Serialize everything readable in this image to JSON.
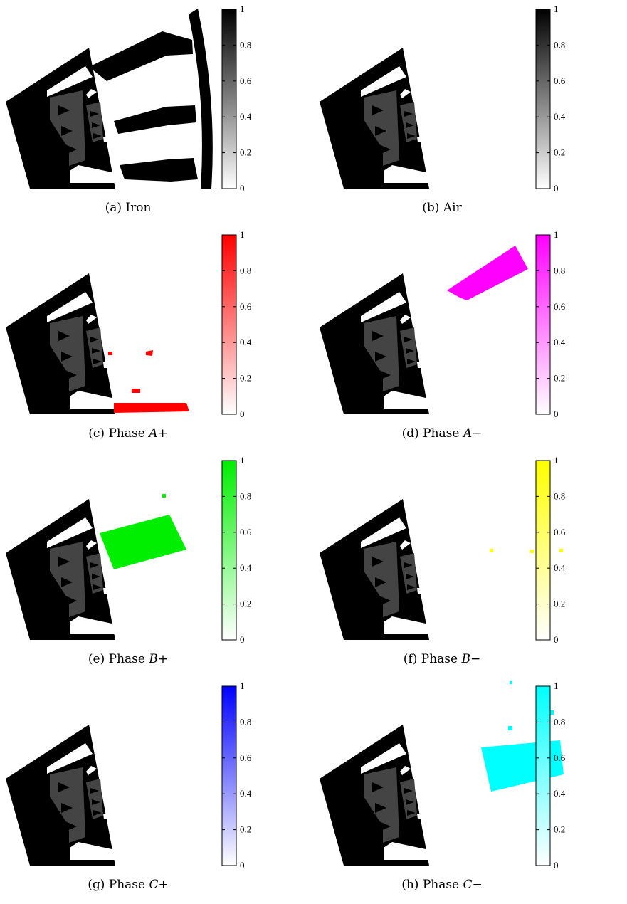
{
  "figure": {
    "panels": [
      {
        "id": "a",
        "tag": "(a)",
        "prefix": "Iron",
        "var": "",
        "sign": "",
        "color": "#000000",
        "material": "iron"
      },
      {
        "id": "b",
        "tag": "(b)",
        "prefix": "Air",
        "var": "",
        "sign": "",
        "color": "#000000",
        "material": "air"
      },
      {
        "id": "c",
        "tag": "(c)",
        "prefix": "Phase ",
        "var": "A",
        "sign": "+",
        "color": "#ff0000",
        "material": "phase"
      },
      {
        "id": "d",
        "tag": "(d)",
        "prefix": "Phase ",
        "var": "A",
        "sign": "−",
        "color": "#ff00ff",
        "material": "phase"
      },
      {
        "id": "e",
        "tag": "(e)",
        "prefix": "Phase ",
        "var": "B",
        "sign": "+",
        "color": "#00ee00",
        "material": "phase"
      },
      {
        "id": "f",
        "tag": "(f)",
        "prefix": "Phase ",
        "var": "B",
        "sign": "−",
        "color": "#ffff00",
        "material": "phase"
      },
      {
        "id": "g",
        "tag": "(g)",
        "prefix": "Phase ",
        "var": "C",
        "sign": "+",
        "color": "#0000ff",
        "material": "phase"
      },
      {
        "id": "h",
        "tag": "(h)",
        "prefix": "Phase ",
        "var": "C",
        "sign": "−",
        "color": "#00ffff",
        "material": "phase"
      }
    ]
  },
  "chart_data": {
    "type": "heatmap",
    "colorbar": {
      "range": [
        0,
        1
      ],
      "ticks": [
        0,
        0.2,
        0.4,
        0.6,
        0.8,
        1
      ],
      "tick_labels": [
        "0",
        "0.2",
        "0.4",
        "0.6",
        "0.8",
        "1"
      ]
    }
  }
}
